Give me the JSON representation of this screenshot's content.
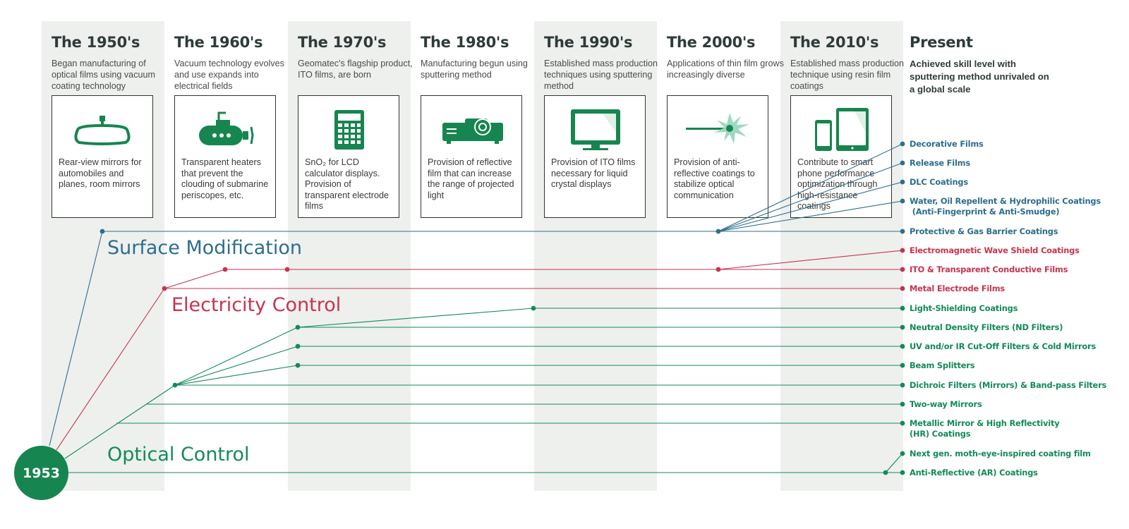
{
  "eras": [
    {
      "title": "The 1950's",
      "desc": "Began manufacturing of optical films using vacuum coating technology",
      "card": "Rear-view mirrors for automobiles and planes, room mirrors",
      "icon": "rear-view-mirror-icon"
    },
    {
      "title": "The 1960's",
      "desc": "Vacuum technology evolves and use expands into electrical fields",
      "card": "Transparent heaters that prevent the clouding of submarine periscopes, etc.",
      "icon": "submarine-icon"
    },
    {
      "title": "The 1970's",
      "desc": "Geomatec's flagship product, ITO films, are born",
      "card": "SnO₂ for LCD calculator displays. Provision of transparent electrode films",
      "icon": "calculator-icon"
    },
    {
      "title": "The 1980's",
      "desc": "Manufacturing begun using sputtering method",
      "card": "Provision of reflective film that can increase the range of projected light",
      "icon": "projector-icon"
    },
    {
      "title": "The 1990's",
      "desc": "Established mass production techniques using sputtering method",
      "card": "Provision of ITO films necessary for liquid crystal displays",
      "icon": "monitor-icon"
    },
    {
      "title": "The 2000's",
      "desc": "Applications of thin film grows increasingly diverse",
      "card": "Provision of anti-reflective coatings to stabilize optical communication",
      "icon": "laser-icon"
    },
    {
      "title": "The 2010's",
      "desc": "Established mass production technique using resin film coatings",
      "card": "Contribute to smart phone performance optimization through high-resistance coatings",
      "icon": "smartphone-tablet-icon"
    }
  ],
  "present": {
    "title": "Present",
    "desc": "Achieved skill level with sputtering method unrivaled on a global scale"
  },
  "origin": "1953",
  "categories": {
    "surface": "Surface Modification",
    "electricity": "Electricity Control",
    "optical": "Optical Control"
  },
  "outcomes": [
    {
      "text": "Decorative Films",
      "group": "blue"
    },
    {
      "text": "Release Films",
      "group": "blue"
    },
    {
      "text": "DLC Coatings",
      "group": "blue"
    },
    {
      "text": "Water, Oil Repellent & Hydrophilic Coatings",
      "text2": " (Anti-Fingerprint & Anti-Smudge)",
      "group": "blue"
    },
    {
      "text": "Protective & Gas Barrier Coatings",
      "group": "blue"
    },
    {
      "text": "Electromagnetic Wave Shield Coatings",
      "group": "red"
    },
    {
      "text": "ITO & Transparent Conductive Films",
      "group": "red"
    },
    {
      "text": "Metal Electrode Films",
      "group": "red"
    },
    {
      "text": "Light-Shielding Coatings",
      "group": "green"
    },
    {
      "text": "Neutral Density Filters (ND Filters)",
      "group": "green"
    },
    {
      "text": "UV and/or IR Cut-Off Filters & Cold Mirrors",
      "group": "green"
    },
    {
      "text": "Beam Splitters",
      "group": "green"
    },
    {
      "text": "Dichroic Filters (Mirrors) & Band-pass Filters",
      "group": "green"
    },
    {
      "text": "Two-way Mirrors",
      "group": "green"
    },
    {
      "text": "Metallic Mirror & High Reflectivity",
      "text2": "(HR) Coatings",
      "group": "green"
    },
    {
      "text": "Next gen. moth-eye-inspired coating film",
      "group": "green"
    },
    {
      "text": "Anti-Reflective (AR) Coatings",
      "group": "green"
    }
  ],
  "colors": {
    "blue": "#2e6e8e",
    "red": "#c8334f",
    "green": "#138a5a",
    "icon": "#17854f",
    "band": "#eef0ee"
  }
}
